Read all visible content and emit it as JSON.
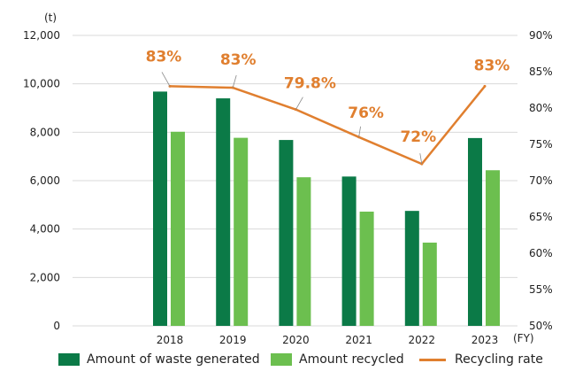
{
  "chart_data": {
    "type": "bar+line",
    "title": "",
    "categories": [
      "2018",
      "2019",
      "2020",
      "2021",
      "2022",
      "2023"
    ],
    "series": [
      {
        "name": "Amount of waste generated",
        "type": "bar",
        "axis": "left",
        "color": "#0b7a47",
        "values": [
          9680,
          9400,
          7680,
          6170,
          4750,
          7760
        ]
      },
      {
        "name": "Amount recycled",
        "type": "bar",
        "axis": "left",
        "color": "#6cbf4f",
        "values": [
          8020,
          7770,
          6140,
          4720,
          3440,
          6430
        ]
      },
      {
        "name": "Recycling rate",
        "type": "line",
        "axis": "right",
        "color": "#e07f2f",
        "values": [
          83,
          82.8,
          79.8,
          76,
          72.3,
          83
        ],
        "labels": [
          "83%",
          "83%",
          "79.8%",
          "76%",
          "72%",
          "83%"
        ]
      }
    ],
    "y_left": {
      "unit": "(t)",
      "ylim": [
        0,
        12000
      ],
      "ticks": [
        0,
        2000,
        4000,
        6000,
        8000,
        10000,
        12000
      ],
      "tick_labels": [
        "0",
        "2,000",
        "4,000",
        "6,000",
        "8,000",
        "10,000",
        "12,000"
      ]
    },
    "y_right": {
      "ylim": [
        50,
        90
      ],
      "ticks": [
        50,
        55,
        60,
        65,
        70,
        75,
        80,
        85,
        90
      ],
      "tick_labels": [
        "50%",
        "55%",
        "60%",
        "65%",
        "70%",
        "75%",
        "80%",
        "85%",
        "90%"
      ]
    },
    "x_unit": "(FY)",
    "grid": true,
    "legend_position": "bottom",
    "legend": [
      "Amount of waste generated",
      "Amount recycled",
      "Recycling rate"
    ]
  },
  "colors": {
    "generated": "#0b7a47",
    "recycled": "#6cbf4f",
    "rate": "#e07f2f",
    "grid": "#d9d9d9"
  }
}
